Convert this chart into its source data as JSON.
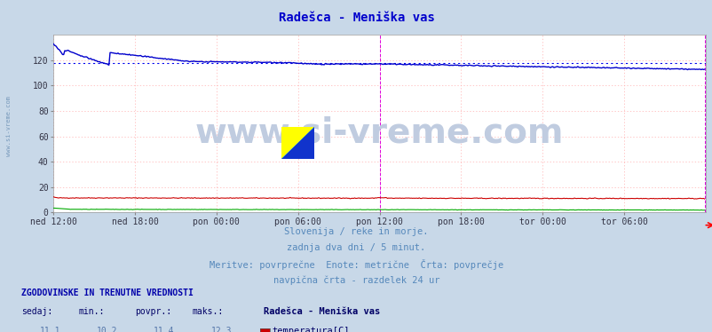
{
  "title": "Radešca - Meniška vas",
  "title_color": "#0000cc",
  "bg_color": "#c8d8e8",
  "plot_bg_color": "#ffffff",
  "grid_color": "#ffb0b0",
  "watermark": "www.si-vreme.com",
  "subtitle_lines": [
    "Slovenija / reke in morje.",
    "zadnja dva dni / 5 minut.",
    "Meritve: povrprečne  Enote: metrične  Črta: povprečje",
    "navpična črta - razdelek 24 ur"
  ],
  "xlabel_ticks": [
    "ned 12:00",
    "ned 18:00",
    "pon 00:00",
    "pon 06:00",
    "pon 12:00",
    "pon 18:00",
    "tor 00:00",
    "tor 06:00"
  ],
  "xlabel_tick_positions": [
    0,
    72,
    144,
    216,
    288,
    360,
    432,
    504
  ],
  "total_points": 576,
  "ylim": [
    0,
    140
  ],
  "yticks": [
    0,
    20,
    40,
    60,
    80,
    100,
    120
  ],
  "vline_color": "#dd00dd",
  "avg_line_color": "#0000ee",
  "avg_line_value": 118,
  "temp_color": "#cc0000",
  "temp_avg": 11.4,
  "temp_min": 10.2,
  "temp_max": 12.3,
  "temp_current": 11.1,
  "pretok_color": "#00aa00",
  "pretok_avg": 2.3,
  "pretok_min": 1.8,
  "pretok_max": 3.5,
  "pretok_current": 1.8,
  "visina_color": "#0000cc",
  "visina_avg": 118,
  "visina_min": 112,
  "visina_max": 133,
  "visina_current": 112,
  "table_header": "ZGODOVINSKE IN TRENUTNE VREDNOSTI",
  "table_cols": [
    "sedaj:",
    "min.:",
    "povpr.:",
    "maks.:"
  ],
  "table_station": "Radešca - Meniška vas",
  "left_margin_text": "www.si-vreme.com",
  "watermark_color": "#c0cce0",
  "watermark_fontsize": 28,
  "subtitle_color": "#5588bb",
  "table_header_color": "#0000aa",
  "table_data_color": "#5577aa",
  "table_label_color": "#000066"
}
